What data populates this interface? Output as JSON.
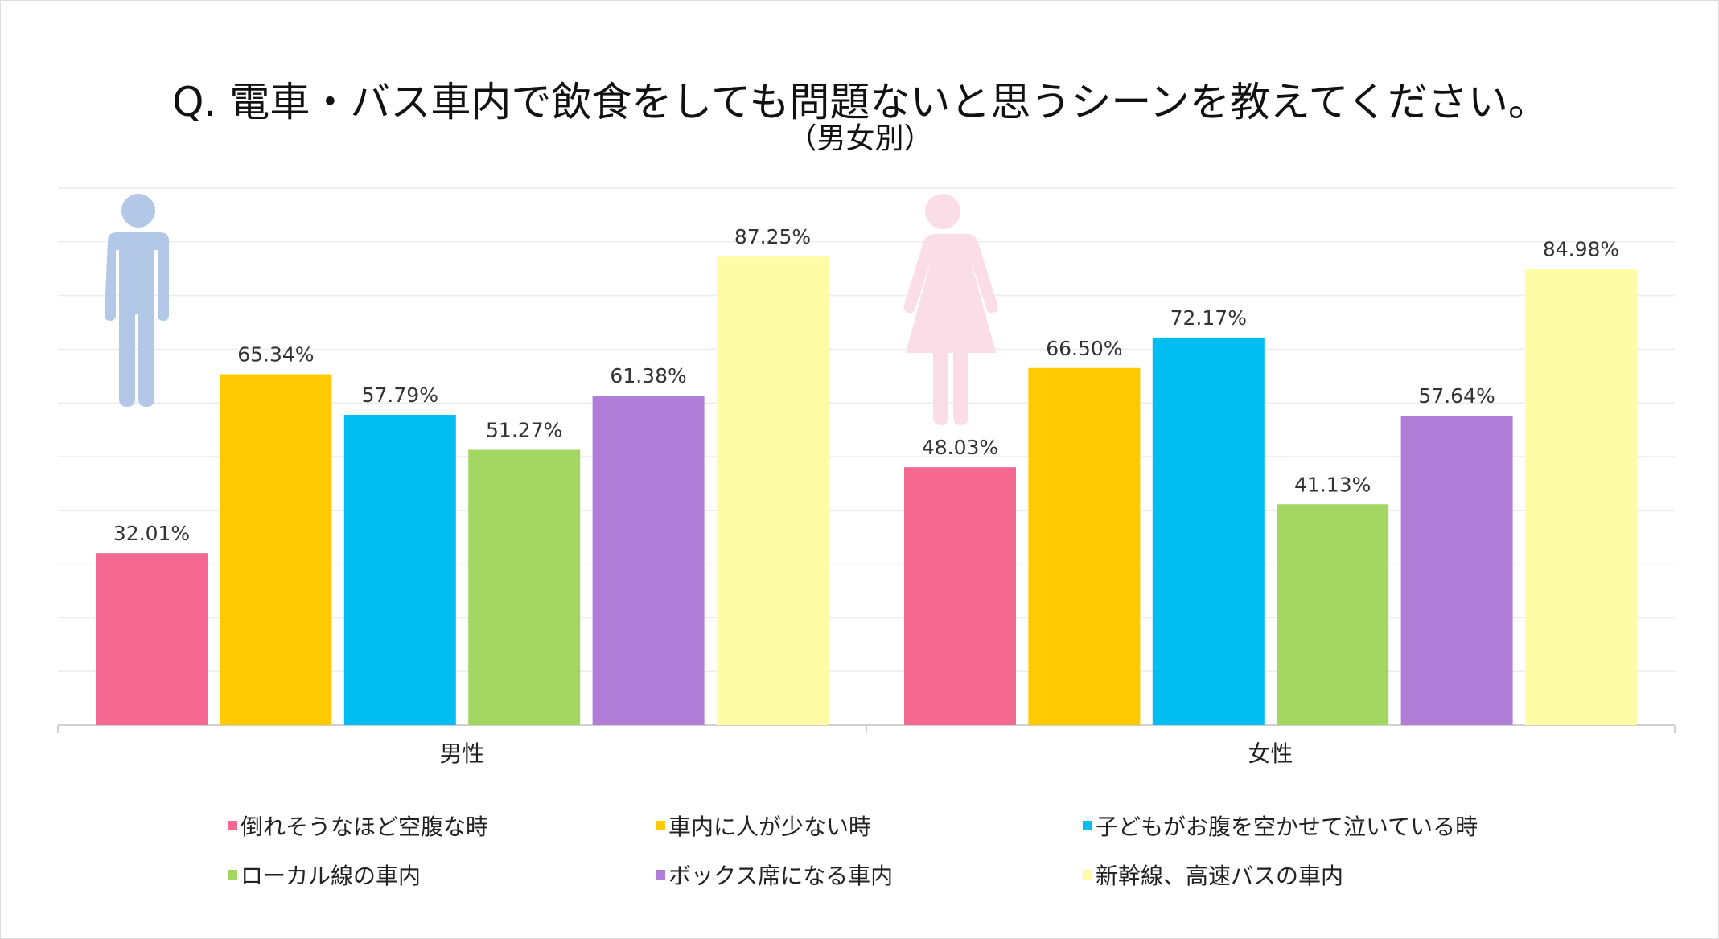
{
  "title": "Q.  電車・バス車内で飲食をしても問題ないと思うシーンを教えてください。",
  "subtitle": "（男女別）",
  "chart_data": {
    "type": "bar",
    "categories": [
      "男性",
      "女性"
    ],
    "series": [
      {
        "name": "倒れそうなほど空腹な時",
        "color": "#f56891",
        "values": [
          32.01,
          48.03
        ],
        "labels": [
          "32.01%",
          "48.03%"
        ]
      },
      {
        "name": "車内に人が少ない時",
        "color": "#ffcb00",
        "values": [
          65.34,
          66.5
        ],
        "labels": [
          "65.34%",
          "66.50%"
        ]
      },
      {
        "name": "子どもがお腹を空かせて泣いている時",
        "color": "#00bdf2",
        "values": [
          57.79,
          72.17
        ],
        "labels": [
          "57.79%",
          "72.17%"
        ]
      },
      {
        "name": "ローカル線の車内",
        "color": "#a3d762",
        "values": [
          51.27,
          41.13
        ],
        "labels": [
          "51.27%",
          "41.13%"
        ]
      },
      {
        "name": "ボックス席になる車内",
        "color": "#b07dd9",
        "values": [
          61.38,
          57.64
        ],
        "labels": [
          "61.38%",
          "57.64%"
        ]
      },
      {
        "name": "新幹線、高速バスの車内",
        "color": "#fefca6",
        "values": [
          87.25,
          84.98
        ],
        "labels": [
          "87.25%",
          "84.98%"
        ]
      }
    ],
    "ylim": [
      0,
      100
    ],
    "grid": true,
    "legend": "bottom",
    "icons": [
      {
        "name": "man-icon",
        "color": "#b3c8e6"
      },
      {
        "name": "woman-icon",
        "color": "#fbdde8"
      }
    ]
  }
}
